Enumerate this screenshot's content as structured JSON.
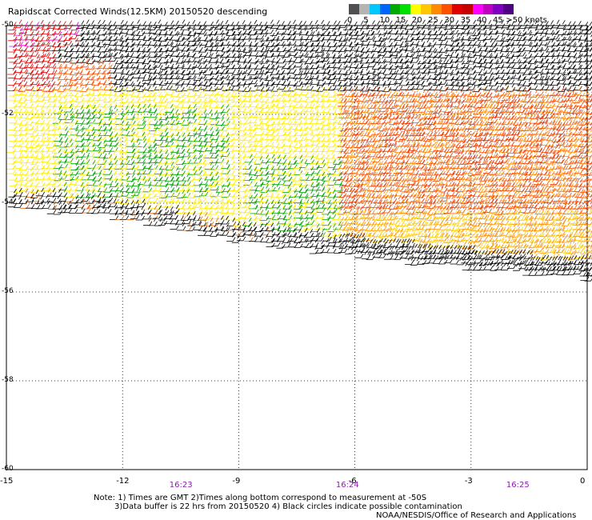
{
  "title": "Rapidscat Corrected Winds(12.5KM) 20150520 descending",
  "legend": {
    "colors": [
      "#505050",
      "#b4b4b4",
      "#00c8ff",
      "#0064ff",
      "#00aa00",
      "#00e000",
      "#ffff00",
      "#ffc800",
      "#ff8c00",
      "#ff5000",
      "#e00000",
      "#c80000",
      "#ff00ff",
      "#c000c0",
      "#8000c0",
      "#500080"
    ],
    "labels": [
      "0",
      "5",
      "10",
      "15",
      "20",
      "25",
      "30",
      "35",
      "40",
      "45",
      ">50 knots"
    ],
    "label_values": [
      0,
      5,
      10,
      15,
      20,
      25,
      30,
      35,
      40,
      45,
      50
    ]
  },
  "axes": {
    "lat_labels": [
      "-50",
      "-52",
      "-54",
      "-56",
      "-58",
      "-60"
    ],
    "lat_values": [
      -50,
      -52,
      -54,
      -56,
      -58,
      -60
    ],
    "lon_labels": [
      "-15",
      "-12",
      "-9",
      "-6",
      "-3",
      "0"
    ],
    "lon_values": [
      -15,
      -12,
      -9,
      -6,
      -3,
      0
    ],
    "lon_range": [
      -15,
      0
    ],
    "lat_range": [
      -60,
      -50
    ],
    "grid": "dotted"
  },
  "times": [
    {
      "label": "16:23",
      "lon": -10.5
    },
    {
      "label": "16:24",
      "lon": -6.2
    },
    {
      "label": "16:25",
      "lon": -1.8
    }
  ],
  "notes": {
    "line1": "Note: 1) Times are GMT 2)Times along bottom correspond to measurement at -50S",
    "line2": "3)Data buffer is 22 hrs from 20150520 4) Black circles indicate possible contamination",
    "credit": "NOAA/NESDIS/Office of Research and Applications"
  }
}
